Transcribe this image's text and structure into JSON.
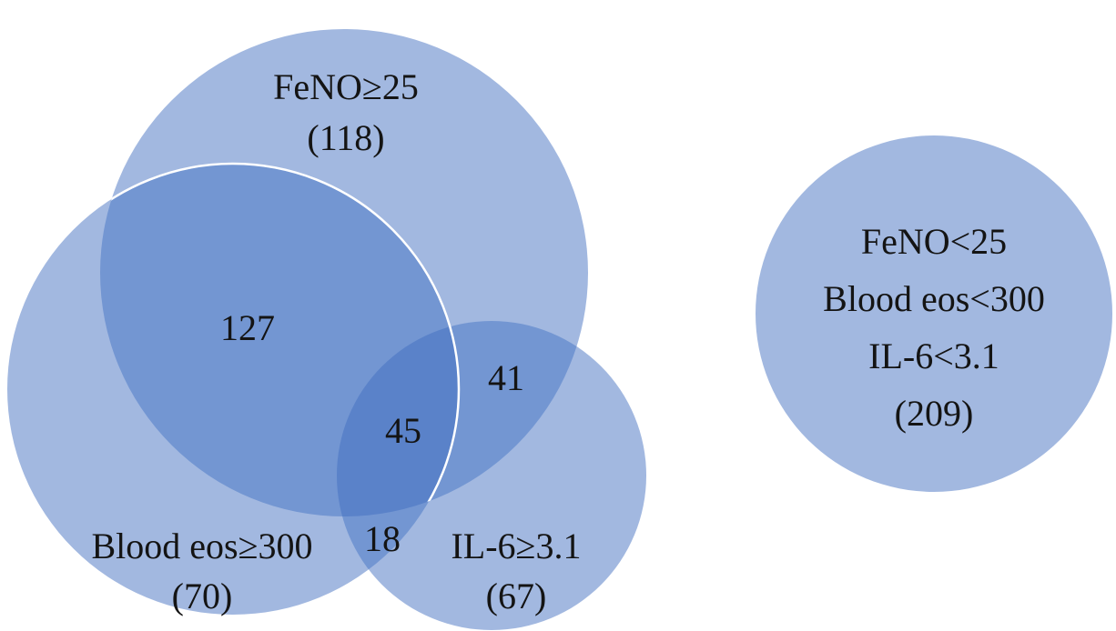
{
  "diagram": {
    "type": "venn",
    "colors": {
      "circle_fill": "#a2b8e0",
      "overlap_two": "#7396d2",
      "overlap_three": "#5a82c9",
      "outline": "#ffffff",
      "text": "#141414"
    },
    "sets": [
      {
        "id": "feno",
        "name": "FeNO≥25",
        "only_count": "(118)"
      },
      {
        "id": "eos",
        "name": "Blood eos≥300",
        "only_count": "(70)"
      },
      {
        "id": "il6",
        "name": "IL-6≥3.1",
        "only_count": "(67)"
      }
    ],
    "intersections": {
      "feno_eos": "127",
      "feno_il6": "41",
      "eos_il6": "18",
      "all_three": "45"
    },
    "none_group": {
      "lines": [
        "FeNO<25",
        "Blood eos<300",
        "IL-6<3.1"
      ],
      "count": "(209)"
    }
  }
}
